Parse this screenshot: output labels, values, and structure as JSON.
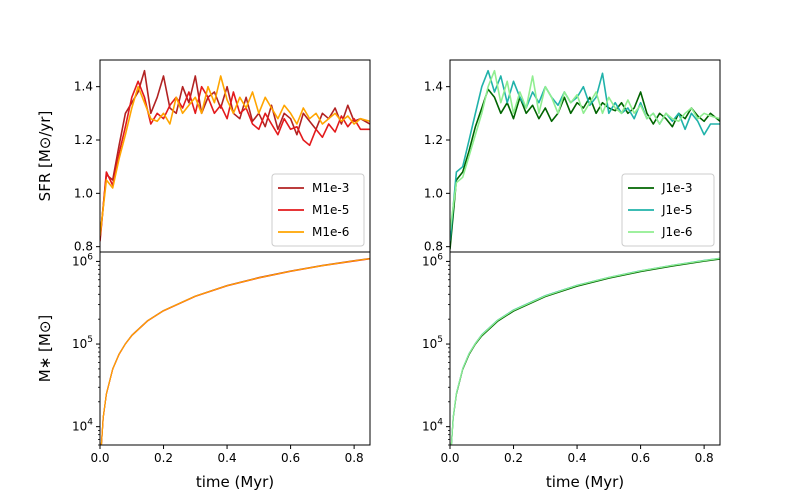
{
  "chart_data": [
    {
      "panel": "sfr-left",
      "type": "line",
      "ylabel": "SFR [M⊙/yr]",
      "xlim": [
        0.0,
        0.85
      ],
      "ylim": [
        0.78,
        1.5
      ],
      "yticks": [
        {
          "v": 0.8,
          "label": "0.8"
        },
        {
          "v": 1.0,
          "label": "1.0"
        },
        {
          "v": 1.2,
          "label": "1.2"
        },
        {
          "v": 1.4,
          "label": "1.4"
        }
      ],
      "legend_position": "lower-right",
      "series": [
        {
          "name": "M1e-3",
          "color": "#b22222",
          "x": [
            0.0,
            0.02,
            0.04,
            0.06,
            0.08,
            0.1,
            0.12,
            0.14,
            0.16,
            0.18,
            0.2,
            0.22,
            0.24,
            0.26,
            0.28,
            0.3,
            0.32,
            0.34,
            0.36,
            0.38,
            0.4,
            0.42,
            0.44,
            0.46,
            0.48,
            0.5,
            0.52,
            0.54,
            0.56,
            0.58,
            0.6,
            0.62,
            0.64,
            0.66,
            0.68,
            0.7,
            0.72,
            0.74,
            0.76,
            0.78,
            0.8,
            0.82,
            0.85
          ],
          "y": [
            0.83,
            1.07,
            1.05,
            1.18,
            1.3,
            1.34,
            1.38,
            1.46,
            1.3,
            1.36,
            1.44,
            1.32,
            1.3,
            1.4,
            1.34,
            1.44,
            1.3,
            1.36,
            1.38,
            1.32,
            1.4,
            1.3,
            1.28,
            1.36,
            1.27,
            1.3,
            1.25,
            1.33,
            1.24,
            1.3,
            1.28,
            1.22,
            1.3,
            1.27,
            1.24,
            1.3,
            1.28,
            1.32,
            1.26,
            1.33,
            1.27,
            1.28,
            1.26
          ]
        },
        {
          "name": "M1e-5",
          "color": "#e31a1c",
          "x": [
            0.0,
            0.02,
            0.04,
            0.06,
            0.08,
            0.1,
            0.12,
            0.14,
            0.16,
            0.18,
            0.2,
            0.22,
            0.24,
            0.26,
            0.28,
            0.3,
            0.32,
            0.34,
            0.36,
            0.38,
            0.4,
            0.42,
            0.44,
            0.46,
            0.48,
            0.5,
            0.52,
            0.54,
            0.56,
            0.58,
            0.6,
            0.62,
            0.64,
            0.66,
            0.68,
            0.7,
            0.72,
            0.74,
            0.76,
            0.78,
            0.8,
            0.82,
            0.85
          ],
          "y": [
            0.82,
            1.08,
            1.03,
            1.15,
            1.25,
            1.36,
            1.42,
            1.36,
            1.26,
            1.3,
            1.28,
            1.33,
            1.36,
            1.32,
            1.38,
            1.3,
            1.4,
            1.36,
            1.3,
            1.33,
            1.28,
            1.38,
            1.3,
            1.32,
            1.26,
            1.24,
            1.3,
            1.26,
            1.22,
            1.28,
            1.24,
            1.25,
            1.2,
            1.18,
            1.24,
            1.21,
            1.26,
            1.23,
            1.29,
            1.25,
            1.28,
            1.24,
            1.24
          ]
        },
        {
          "name": "M1e-6",
          "color": "#ffa500",
          "x": [
            0.0,
            0.02,
            0.04,
            0.06,
            0.08,
            0.1,
            0.12,
            0.14,
            0.16,
            0.18,
            0.2,
            0.22,
            0.24,
            0.26,
            0.28,
            0.3,
            0.32,
            0.34,
            0.36,
            0.38,
            0.4,
            0.42,
            0.44,
            0.46,
            0.48,
            0.5,
            0.52,
            0.54,
            0.56,
            0.58,
            0.6,
            0.62,
            0.64,
            0.66,
            0.68,
            0.7,
            0.72,
            0.74,
            0.76,
            0.78,
            0.8,
            0.82,
            0.85
          ],
          "y": [
            0.84,
            1.05,
            1.02,
            1.13,
            1.22,
            1.32,
            1.4,
            1.34,
            1.28,
            1.27,
            1.3,
            1.26,
            1.36,
            1.3,
            1.33,
            1.36,
            1.3,
            1.4,
            1.34,
            1.44,
            1.35,
            1.3,
            1.36,
            1.32,
            1.38,
            1.3,
            1.36,
            1.32,
            1.28,
            1.33,
            1.3,
            1.26,
            1.32,
            1.28,
            1.3,
            1.26,
            1.28,
            1.3,
            1.27,
            1.29,
            1.26,
            1.28,
            1.27
          ]
        }
      ]
    },
    {
      "panel": "sfr-right",
      "type": "line",
      "ylabel": "",
      "xlim": [
        0.0,
        0.85
      ],
      "ylim": [
        0.78,
        1.5
      ],
      "yticks": [
        {
          "v": 0.8,
          "label": "0.8"
        },
        {
          "v": 1.0,
          "label": "1.0"
        },
        {
          "v": 1.2,
          "label": "1.2"
        },
        {
          "v": 1.4,
          "label": "1.4"
        }
      ],
      "legend_position": "lower-right",
      "series": [
        {
          "name": "J1e-3",
          "color": "#006400",
          "x": [
            0.0,
            0.02,
            0.04,
            0.06,
            0.08,
            0.1,
            0.12,
            0.14,
            0.16,
            0.18,
            0.2,
            0.22,
            0.24,
            0.26,
            0.28,
            0.3,
            0.32,
            0.34,
            0.36,
            0.38,
            0.4,
            0.42,
            0.44,
            0.46,
            0.48,
            0.5,
            0.52,
            0.54,
            0.56,
            0.58,
            0.6,
            0.62,
            0.64,
            0.66,
            0.68,
            0.7,
            0.72,
            0.74,
            0.76,
            0.78,
            0.8,
            0.82,
            0.85
          ],
          "y": [
            0.79,
            1.05,
            1.08,
            1.16,
            1.25,
            1.32,
            1.39,
            1.36,
            1.3,
            1.34,
            1.28,
            1.36,
            1.3,
            1.33,
            1.28,
            1.32,
            1.27,
            1.3,
            1.36,
            1.3,
            1.34,
            1.32,
            1.36,
            1.3,
            1.34,
            1.32,
            1.31,
            1.34,
            1.3,
            1.32,
            1.38,
            1.3,
            1.26,
            1.3,
            1.28,
            1.25,
            1.3,
            1.28,
            1.32,
            1.29,
            1.27,
            1.3,
            1.27
          ]
        },
        {
          "name": "J1e-5",
          "color": "#20b2aa",
          "x": [
            0.0,
            0.02,
            0.04,
            0.06,
            0.08,
            0.1,
            0.12,
            0.14,
            0.16,
            0.18,
            0.2,
            0.22,
            0.24,
            0.26,
            0.28,
            0.3,
            0.32,
            0.34,
            0.36,
            0.38,
            0.4,
            0.42,
            0.44,
            0.46,
            0.48,
            0.5,
            0.52,
            0.54,
            0.56,
            0.58,
            0.6,
            0.62,
            0.64,
            0.66,
            0.68,
            0.7,
            0.72,
            0.74,
            0.76,
            0.78,
            0.8,
            0.82,
            0.85
          ],
          "y": [
            0.82,
            1.08,
            1.1,
            1.2,
            1.3,
            1.4,
            1.46,
            1.38,
            1.44,
            1.34,
            1.42,
            1.36,
            1.32,
            1.38,
            1.34,
            1.4,
            1.36,
            1.33,
            1.38,
            1.34,
            1.36,
            1.4,
            1.33,
            1.36,
            1.45,
            1.3,
            1.34,
            1.3,
            1.32,
            1.28,
            1.34,
            1.28,
            1.3,
            1.26,
            1.3,
            1.27,
            1.3,
            1.24,
            1.3,
            1.27,
            1.22,
            1.26,
            1.26
          ]
        },
        {
          "name": "J1e-6",
          "color": "#90ee90",
          "x": [
            0.0,
            0.02,
            0.04,
            0.06,
            0.08,
            0.1,
            0.12,
            0.14,
            0.16,
            0.18,
            0.2,
            0.22,
            0.24,
            0.26,
            0.28,
            0.3,
            0.32,
            0.34,
            0.36,
            0.38,
            0.4,
            0.42,
            0.44,
            0.46,
            0.48,
            0.5,
            0.52,
            0.54,
            0.56,
            0.58,
            0.6,
            0.62,
            0.64,
            0.66,
            0.68,
            0.7,
            0.72,
            0.74,
            0.76,
            0.78,
            0.8,
            0.82,
            0.85
          ],
          "y": [
            0.86,
            1.04,
            1.06,
            1.14,
            1.22,
            1.3,
            1.4,
            1.46,
            1.34,
            1.42,
            1.3,
            1.38,
            1.32,
            1.44,
            1.3,
            1.4,
            1.36,
            1.3,
            1.38,
            1.34,
            1.37,
            1.3,
            1.34,
            1.38,
            1.3,
            1.36,
            1.32,
            1.3,
            1.35,
            1.3,
            1.33,
            1.28,
            1.3,
            1.26,
            1.3,
            1.28,
            1.27,
            1.3,
            1.32,
            1.28,
            1.3,
            1.29,
            1.28
          ]
        }
      ]
    },
    {
      "panel": "mass-left",
      "type": "line",
      "xlabel": "time (Myr)",
      "ylabel": "M∗ [M⊙]",
      "yscale": "log",
      "xlim": [
        0.0,
        0.85
      ],
      "ylim": [
        6000,
        1300000
      ],
      "xticks": [
        "0.0",
        "0.2",
        "0.4",
        "0.6",
        "0.8"
      ],
      "yticks": [
        {
          "v": 10000,
          "base": "10",
          "exp": "4"
        },
        {
          "v": 100000,
          "base": "10",
          "exp": "5"
        },
        {
          "v": 1000000,
          "base": "10",
          "exp": "6"
        }
      ],
      "series": [
        {
          "name": "M1e-3",
          "color": "#b22222",
          "x": [
            0.0045,
            0.01,
            0.02,
            0.04,
            0.06,
            0.08,
            0.1,
            0.15,
            0.2,
            0.3,
            0.4,
            0.5,
            0.6,
            0.7,
            0.8,
            0.85
          ],
          "y": [
            6000,
            13000,
            25000,
            50000,
            76000,
            101000,
            128000,
            192000,
            255000,
            380000,
            512000,
            638000,
            766000,
            894000,
            1022000,
            1085000
          ]
        },
        {
          "name": "M1e-5",
          "color": "#e31a1c",
          "x": [
            0.0045,
            0.01,
            0.02,
            0.04,
            0.06,
            0.08,
            0.1,
            0.15,
            0.2,
            0.3,
            0.4,
            0.5,
            0.6,
            0.7,
            0.8,
            0.85
          ],
          "y": [
            6000,
            12800,
            24800,
            49500,
            75000,
            100000,
            126000,
            190000,
            252000,
            377000,
            505000,
            630000,
            757000,
            884000,
            1010000,
            1072000
          ]
        },
        {
          "name": "M1e-6",
          "color": "#ffa500",
          "x": [
            0.0045,
            0.01,
            0.02,
            0.04,
            0.06,
            0.08,
            0.1,
            0.15,
            0.2,
            0.3,
            0.4,
            0.5,
            0.6,
            0.7,
            0.8,
            0.85
          ],
          "y": [
            6000,
            12900,
            24900,
            49800,
            75500,
            100500,
            127000,
            191000,
            253000,
            379000,
            508000,
            634000,
            762000,
            889000,
            1016000,
            1080000
          ]
        }
      ]
    },
    {
      "panel": "mass-right",
      "type": "line",
      "xlabel": "time (Myr)",
      "ylabel": "",
      "yscale": "log",
      "xlim": [
        0.0,
        0.85
      ],
      "ylim": [
        6000,
        1300000
      ],
      "xticks": [
        "0.0",
        "0.2",
        "0.4",
        "0.6",
        "0.8"
      ],
      "yticks": [
        {
          "v": 10000,
          "base": "10",
          "exp": "4"
        },
        {
          "v": 100000,
          "base": "10",
          "exp": "5"
        },
        {
          "v": 1000000,
          "base": "10",
          "exp": "6"
        }
      ],
      "series": [
        {
          "name": "J1e-3",
          "color": "#006400",
          "x": [
            0.0045,
            0.01,
            0.02,
            0.04,
            0.06,
            0.08,
            0.1,
            0.15,
            0.2,
            0.3,
            0.4,
            0.5,
            0.6,
            0.7,
            0.8,
            0.85
          ],
          "y": [
            6000,
            12700,
            24600,
            49200,
            74600,
            99500,
            125000,
            188000,
            250000,
            374000,
            500000,
            625000,
            750000,
            876000,
            1002000,
            1064000
          ]
        },
        {
          "name": "J1e-5",
          "color": "#20b2aa",
          "x": [
            0.0045,
            0.01,
            0.02,
            0.04,
            0.06,
            0.08,
            0.1,
            0.15,
            0.2,
            0.3,
            0.4,
            0.5,
            0.6,
            0.7,
            0.8,
            0.85
          ],
          "y": [
            6000,
            13100,
            25400,
            50600,
            77000,
            102500,
            130000,
            195000,
            259000,
            386000,
            516000,
            643000,
            771000,
            900000,
            1030000,
            1094000
          ]
        },
        {
          "name": "J1e-6",
          "color": "#90ee90",
          "x": [
            0.0045,
            0.01,
            0.02,
            0.04,
            0.06,
            0.08,
            0.1,
            0.15,
            0.2,
            0.3,
            0.4,
            0.5,
            0.6,
            0.7,
            0.8,
            0.85
          ],
          "y": [
            6000,
            13000,
            25200,
            50300,
            76300,
            101500,
            128500,
            193000,
            256000,
            383000,
            512000,
            639000,
            767000,
            895000,
            1024000,
            1088000
          ]
        }
      ]
    }
  ]
}
